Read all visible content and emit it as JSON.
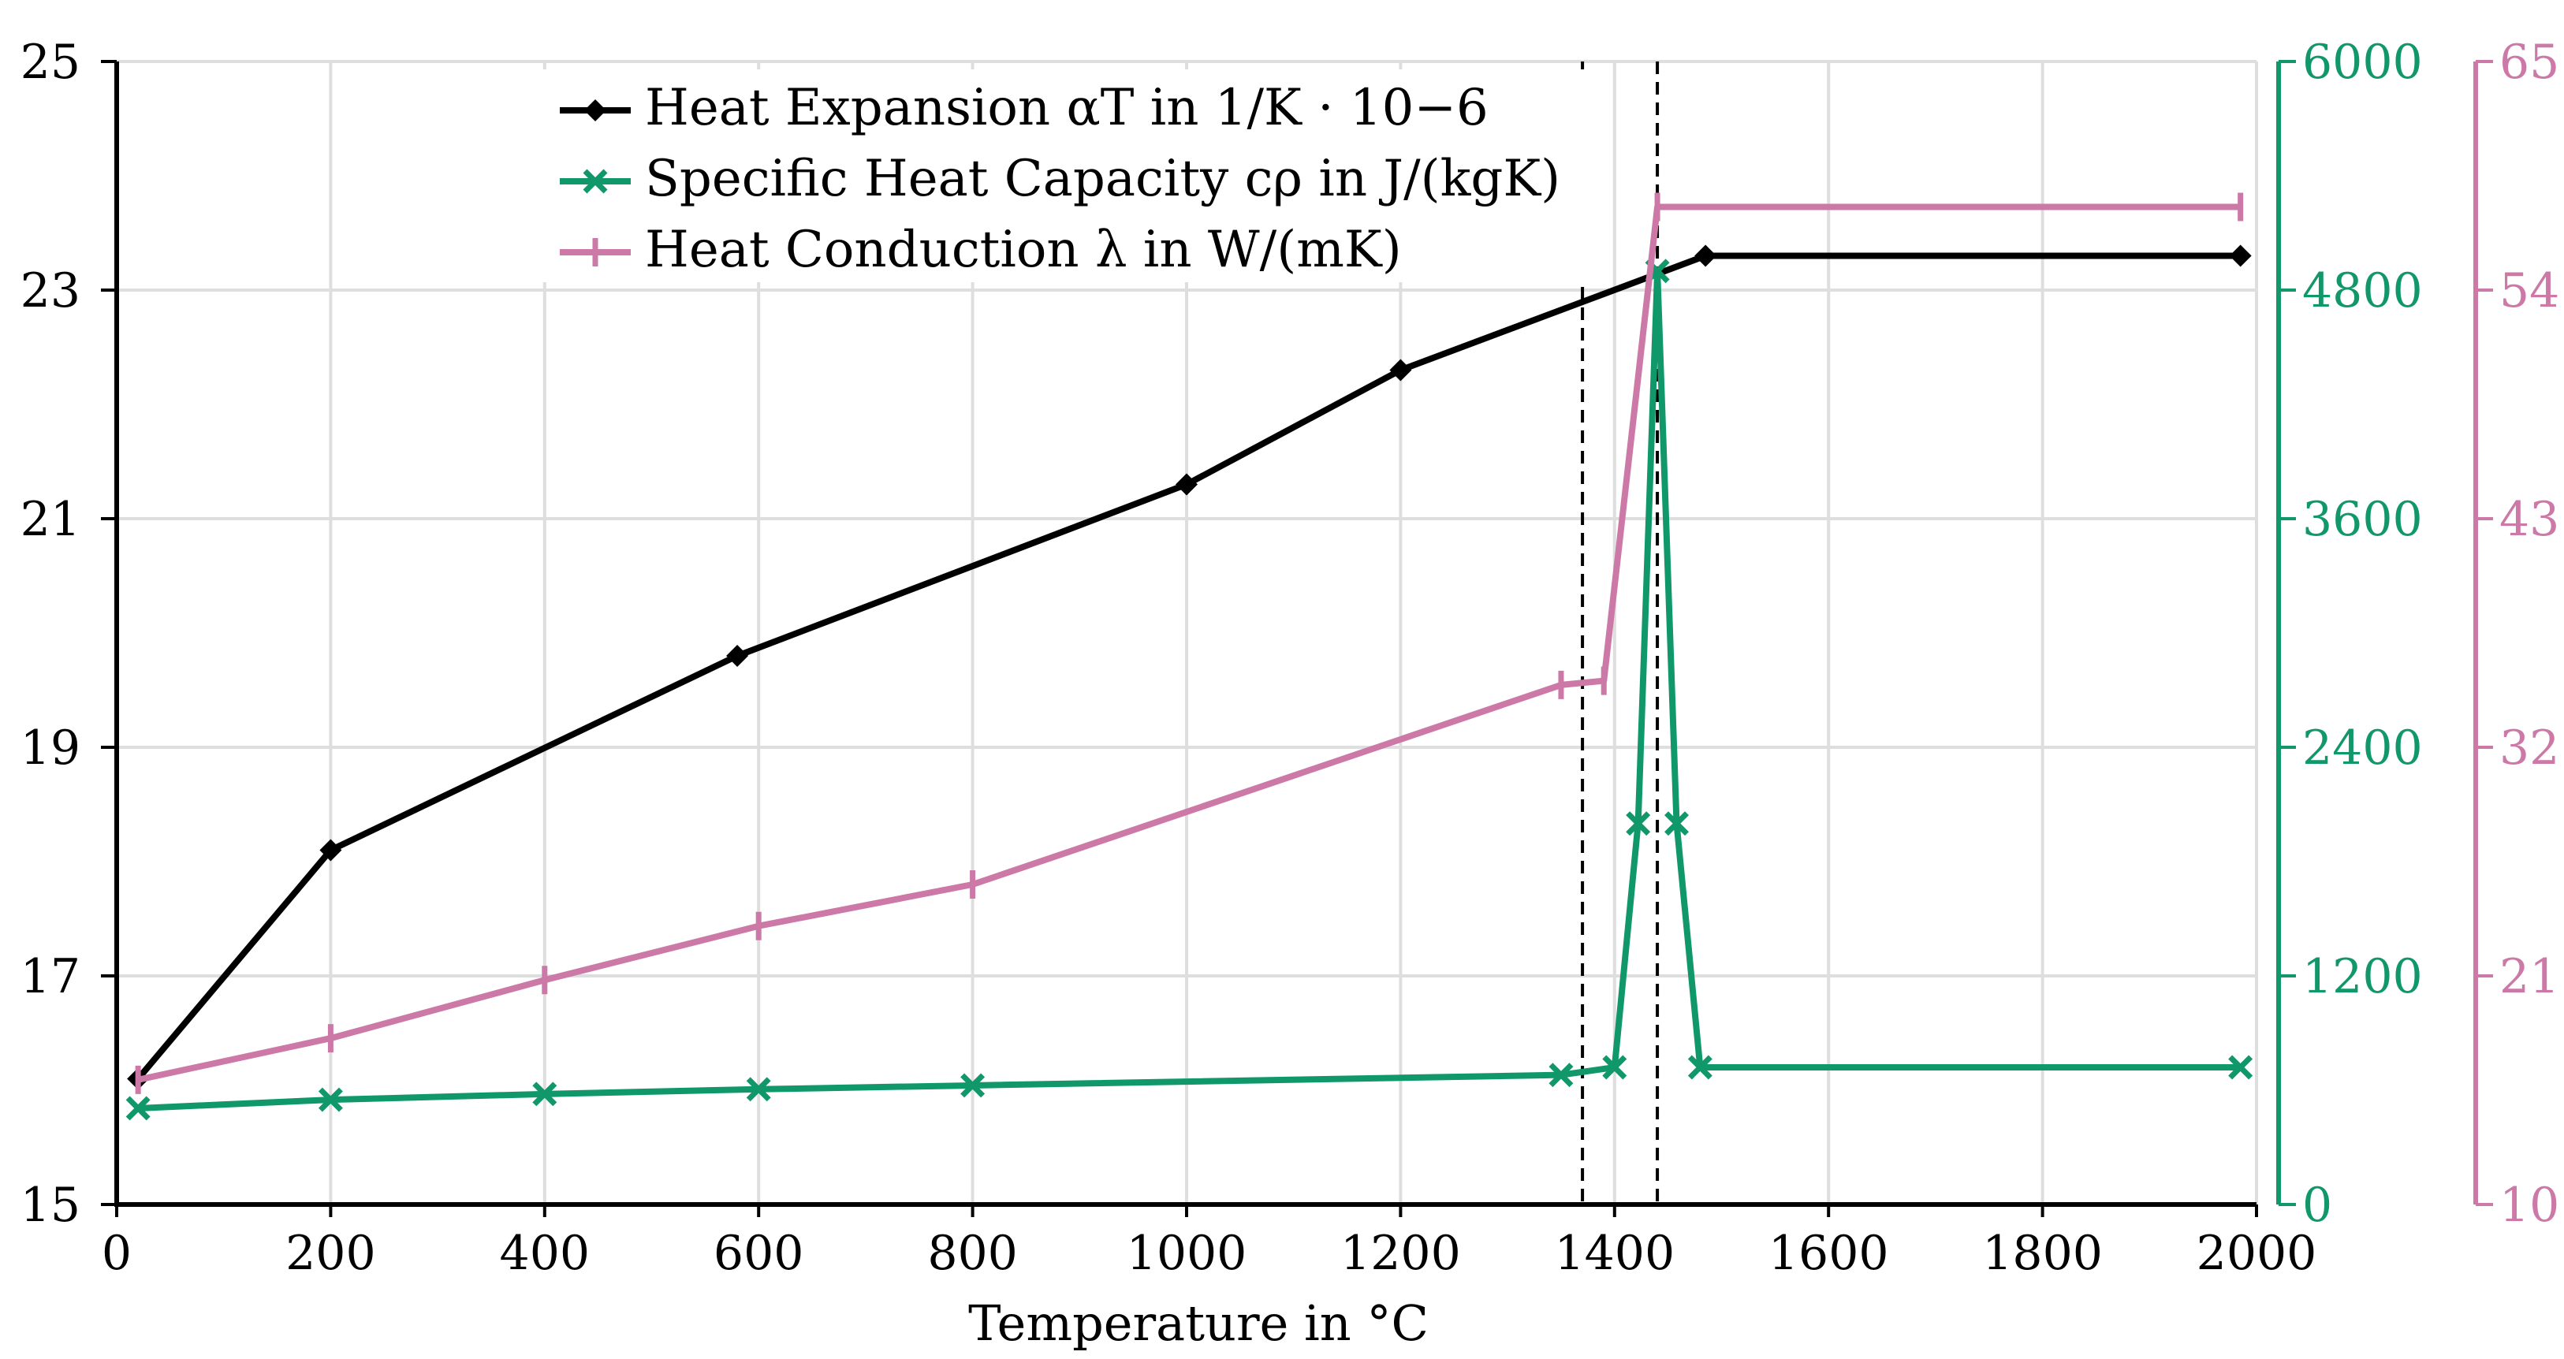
{
  "chart_data": {
    "type": "line",
    "xlabel": "Temperature in °C",
    "xlim": [
      0,
      2000
    ],
    "x_ticks": [
      0,
      200,
      400,
      600,
      800,
      1000,
      1200,
      1400,
      1600,
      1800,
      2000
    ],
    "x_tick_labels": [
      "0",
      "200",
      "400",
      "600",
      "800",
      "1000",
      "1200",
      "1400",
      "1600",
      "1800",
      "2000"
    ],
    "axes": {
      "left": {
        "lim": [
          15,
          25
        ],
        "ticks": [
          15,
          17,
          19,
          21,
          23,
          25
        ],
        "tick_labels": [
          "15",
          "17",
          "19",
          "21",
          "23",
          "25"
        ],
        "color": "#000000"
      },
      "right1": {
        "lim": [
          0,
          6000
        ],
        "ticks": [
          0,
          1200,
          2400,
          3600,
          4800,
          6000
        ],
        "tick_labels": [
          "0",
          "1200",
          "2400",
          "3600",
          "4800",
          "6000"
        ],
        "color": "#10986a"
      },
      "right2": {
        "lim": [
          10,
          65
        ],
        "ticks": [
          10,
          21,
          32,
          43,
          54,
          65
        ],
        "tick_labels": [
          "10",
          "21",
          "32",
          "43",
          "54",
          "65"
        ],
        "color": "#cc79a7"
      }
    },
    "vlines": [
      1370,
      1440
    ],
    "grid": true,
    "legend_position": "top-center",
    "series": [
      {
        "name": "Heat Expansion αT in 1/K · 10−6",
        "axis": "left",
        "color": "#000000",
        "marker": "diamond",
        "x": [
          20,
          200,
          580,
          1000,
          1200,
          1485,
          1985
        ],
        "y": [
          16.1,
          18.1,
          19.8,
          21.3,
          22.3,
          23.3,
          23.3
        ]
      },
      {
        "name": "Specific Heat Capacity cρ in J/(kgK)",
        "axis": "right1",
        "color": "#10986a",
        "marker": "x",
        "x": [
          20,
          200,
          400,
          600,
          800,
          1350,
          1400,
          1422,
          1440,
          1458,
          1480,
          1985
        ],
        "y": [
          505,
          550,
          580,
          605,
          625,
          680,
          720,
          2000,
          4900,
          2000,
          720,
          720
        ]
      },
      {
        "name": "Heat Conduction λ in W/(mK)",
        "axis": "right2",
        "color": "#cc79a7",
        "marker": "plus",
        "x": [
          20,
          200,
          400,
          600,
          800,
          1350,
          1390,
          1440,
          1985
        ],
        "y": [
          16.0,
          18.0,
          20.8,
          23.4,
          25.4,
          35.0,
          35.2,
          58.0,
          58.0
        ]
      }
    ]
  }
}
